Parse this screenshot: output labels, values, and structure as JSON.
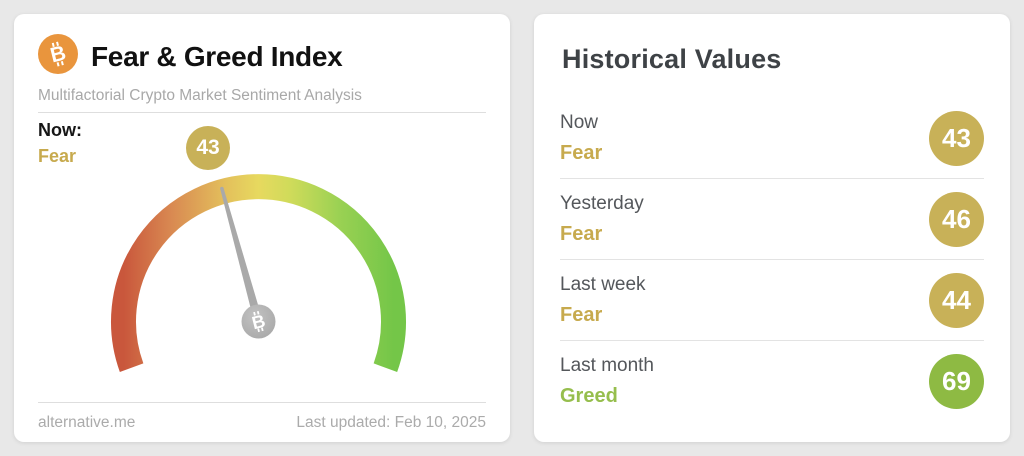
{
  "gauge_card": {
    "title": "Fear & Greed Index",
    "subtitle": "Multifactorial Crypto Market Sentiment Analysis",
    "now_label": "Now:",
    "now_classification": "Fear",
    "footer": {
      "source": "alternative.me",
      "last_updated": "Last updated: Feb 10, 2025"
    }
  },
  "historical_card": {
    "title": "Historical Values",
    "rows": [
      {
        "label": "Now",
        "classification": "Fear",
        "value": 43,
        "sentiment": "fear"
      },
      {
        "label": "Yesterday",
        "classification": "Fear",
        "value": 46,
        "sentiment": "fear"
      },
      {
        "label": "Last week",
        "classification": "Fear",
        "value": 44,
        "sentiment": "fear"
      },
      {
        "label": "Last month",
        "classification": "Greed",
        "value": 69,
        "sentiment": "greed"
      }
    ]
  },
  "chart_data": {
    "type": "gauge",
    "title": "Fear & Greed Index",
    "value": 43,
    "classification": "Fear",
    "scale_min": 0,
    "scale_max": 100,
    "arc_span_degrees": 220,
    "gradient": [
      "#c9573c",
      "#d98a52",
      "#e3c05c",
      "#e7d95f",
      "#cfdb5a",
      "#9ad153",
      "#74c648"
    ],
    "needle_color": "#a9a9a9",
    "history": [
      {
        "label": "Now",
        "value": 43,
        "classification": "Fear"
      },
      {
        "label": "Yesterday",
        "value": 46,
        "classification": "Fear"
      },
      {
        "label": "Last week",
        "value": 44,
        "classification": "Fear"
      },
      {
        "label": "Last month",
        "value": 69,
        "classification": "Greed"
      }
    ]
  },
  "icons": {
    "bitcoin_glyph": "B"
  },
  "colors": {
    "gold_badge": "#c8b158",
    "gold_text": "#c7aa4e",
    "green_badge": "#8eba43",
    "green_text": "#96be4d",
    "bitcoin_orange": "#e9953d",
    "page_background": "#e8e8e8"
  }
}
